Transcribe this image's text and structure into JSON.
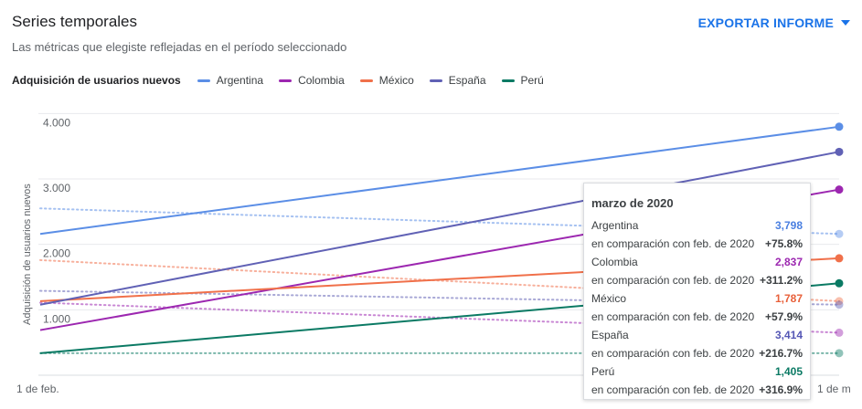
{
  "header": {
    "title": "Series temporales",
    "subtitle": "Las métricas que elegiste reflejadas en el período seleccionado",
    "export_label": "EXPORTAR INFORME"
  },
  "legend": {
    "metric": "Adquisición de usuarios nuevos",
    "items": [
      {
        "name": "Argentina",
        "color": "#5b8ee6"
      },
      {
        "name": "Colombia",
        "color": "#9c27b0"
      },
      {
        "name": "México",
        "color": "#f0704a"
      },
      {
        "name": "España",
        "color": "#6061b5"
      },
      {
        "name": "Perú",
        "color": "#0b7a64"
      }
    ]
  },
  "chart_data": {
    "type": "line",
    "ylabel": "Adquisición de usuarios nuevos",
    "x": [
      "1 de feb.",
      "1 de m"
    ],
    "y_ticks": [
      "4.000",
      "3.000",
      "2.000",
      "1.000"
    ],
    "ylim": [
      0,
      4200
    ],
    "grid": true,
    "series": [
      {
        "name": "Argentina",
        "color": "#5b8ee6",
        "values": [
          2160,
          3798
        ],
        "previous": [
          2550,
          2160
        ]
      },
      {
        "name": "Colombia",
        "color": "#9c27b0",
        "values": [
          690,
          2837
        ],
        "previous": [
          1110,
          650
        ]
      },
      {
        "name": "México",
        "color": "#f0704a",
        "values": [
          1132,
          1787
        ],
        "previous": [
          1760,
          1132
        ]
      },
      {
        "name": "España",
        "color": "#6061b5",
        "values": [
          1078,
          3414
        ],
        "previous": [
          1290,
          1078
        ]
      },
      {
        "name": "Perú",
        "color": "#0b7a64",
        "values": [
          337,
          1405
        ],
        "previous": [
          337,
          337
        ]
      }
    ]
  },
  "tooltip": {
    "title": "marzo de 2020",
    "rows": [
      {
        "name": "Argentina",
        "value": "3,798",
        "compare_label": "en comparación con feb. de 2020",
        "change": "+75.8%",
        "color": "#4a7fe0"
      },
      {
        "name": "Colombia",
        "value": "2,837",
        "compare_label": "en comparación con feb. de 2020",
        "change": "+311.2%",
        "color": "#9c27b0"
      },
      {
        "name": "México",
        "value": "1,787",
        "compare_label": "en comparación con feb. de 2020",
        "change": "+57.9%",
        "color": "#e8603a"
      },
      {
        "name": "España",
        "value": "3,414",
        "compare_label": "en comparación con feb. de 2020",
        "change": "+216.7%",
        "color": "#5557b5"
      },
      {
        "name": "Perú",
        "value": "1,405",
        "compare_label": "en comparación con feb. de 2020",
        "change": "+316.9%",
        "color": "#0b7a64"
      }
    ]
  }
}
